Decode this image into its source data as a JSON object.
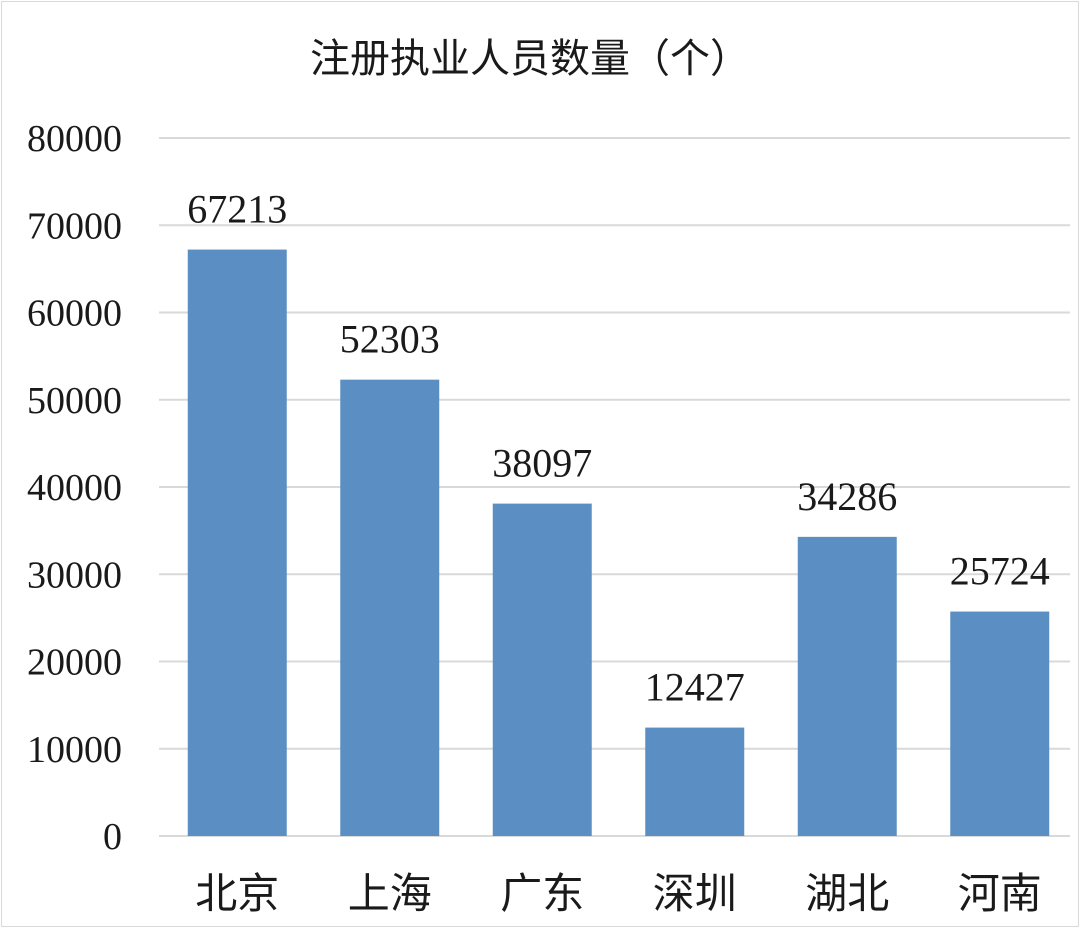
{
  "chart_data": {
    "type": "bar",
    "title": "注册执业人员数量（个）",
    "categories": [
      "北京",
      "上海",
      "广东",
      "深圳",
      "湖北",
      "河南"
    ],
    "values": [
      67213,
      52303,
      38097,
      12427,
      34286,
      25724
    ],
    "data_labels": [
      "67213",
      "52303",
      "38097",
      "12427",
      "34286",
      "25724"
    ],
    "ylim": [
      0,
      80000
    ],
    "yticks": [
      0,
      10000,
      20000,
      30000,
      40000,
      50000,
      60000,
      70000,
      80000
    ],
    "ytick_labels": [
      "0",
      "10000",
      "20000",
      "30000",
      "40000",
      "50000",
      "60000",
      "70000",
      "80000"
    ],
    "xlabel": "",
    "ylabel": "",
    "grid": true,
    "legend": "none",
    "bar_color": "#5b8fc4"
  }
}
